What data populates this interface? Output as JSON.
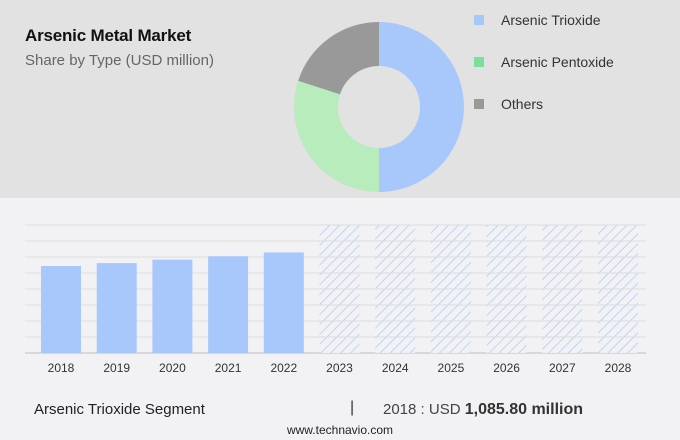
{
  "header": {
    "title": "Arsenic Metal Market",
    "subtitle": "Share by Type (USD million)"
  },
  "legend": {
    "items": [
      {
        "label": "Arsenic Trioxide",
        "color": "#a8c8fc"
      },
      {
        "label": "Arsenic Pentoxide",
        "color": "#7de09a"
      },
      {
        "label": "Others",
        "color": "#999999"
      }
    ]
  },
  "footer": {
    "segment_label": "Arsenic Trioxide Segment",
    "separator": "|",
    "value_prefix": "2018 : USD ",
    "value_bold": "1,085.80 million",
    "website": "www.technavio.com"
  },
  "chart_data": [
    {
      "type": "pie",
      "title": "Arsenic Metal Market",
      "subtitle": "Share by Type (USD million)",
      "donut": true,
      "categories": [
        "Arsenic Trioxide",
        "Arsenic Pentoxide",
        "Others"
      ],
      "values": [
        50,
        30,
        20
      ],
      "colors": [
        "#a8c8fc",
        "#b8ecbc",
        "#999999"
      ],
      "legend_position": "right"
    },
    {
      "type": "bar",
      "title": "",
      "xlabel": "",
      "ylabel": "",
      "categories": [
        "2018",
        "2019",
        "2020",
        "2021",
        "2022",
        "2023",
        "2024",
        "2025",
        "2026",
        "2027",
        "2028"
      ],
      "series": [
        {
          "name": "Arsenic Trioxide Segment (USD million)",
          "values": [
            1085.8,
            1122,
            1165,
            1208,
            1255,
            null,
            null,
            null,
            null,
            null,
            null
          ]
        }
      ],
      "forecast_categories": [
        "2023",
        "2024",
        "2025",
        "2026",
        "2027",
        "2028"
      ],
      "forecast_style": "hatched",
      "grid": true,
      "gridlines": 8,
      "y_axis_visible": false,
      "bar_color": "#a8c8fc",
      "annotation": "2018 : USD 1,085.80 million"
    }
  ]
}
